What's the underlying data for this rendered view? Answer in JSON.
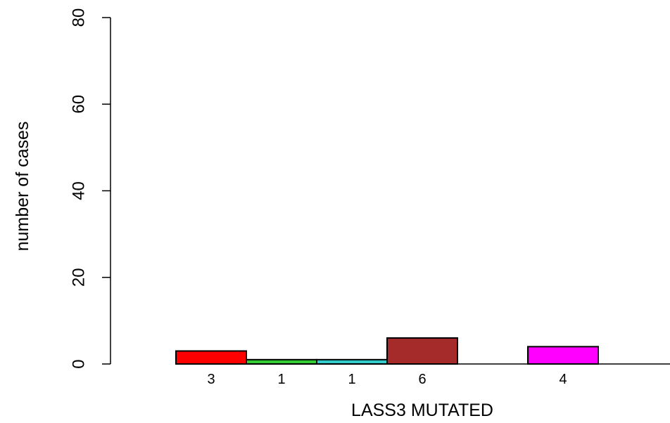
{
  "chart_data": {
    "type": "bar",
    "categories": [
      "",
      "",
      "",
      "",
      "",
      ""
    ],
    "values": [
      3,
      1,
      1,
      6,
      0,
      4
    ],
    "count_labels": [
      "3",
      "1",
      "1",
      "6",
      "",
      "4"
    ],
    "colors": [
      "#ff0000",
      "#33cc33",
      "#33cccc",
      "#a52a2a",
      "#ffffff",
      "#ff00ff"
    ],
    "title": "",
    "xlabel": "LASS3 MUTATED",
    "ylabel": "number of cases",
    "ylim": [
      0,
      80
    ],
    "yticks": [
      0,
      20,
      40,
      60,
      80
    ],
    "grid": false
  }
}
